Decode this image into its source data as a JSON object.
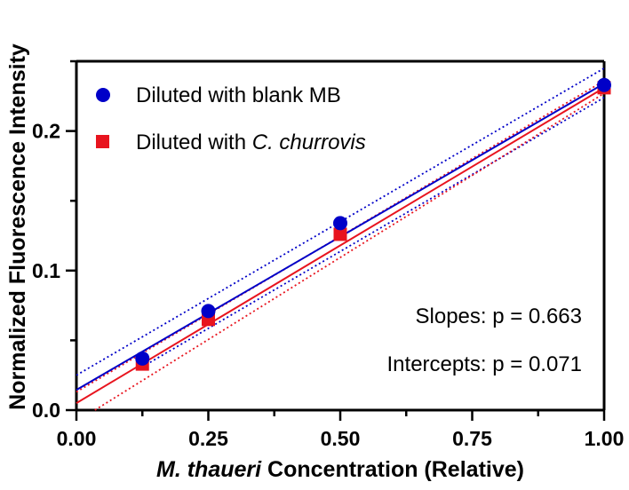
{
  "chart_data": {
    "type": "scatter",
    "xlabel_italic": "M. thaueri",
    "xlabel_rest": " Concentration (Relative)",
    "ylabel": "Normalized Fluorescence Intensity",
    "xlim": [
      0,
      1
    ],
    "ylim": [
      0,
      0.25
    ],
    "xticks": [
      "0.00",
      "0.25",
      "0.50",
      "0.75",
      "1.00"
    ],
    "xtick_values": [
      0,
      0.25,
      0.5,
      0.75,
      1.0
    ],
    "yticks": [
      "0.0",
      "0.1",
      "0.2"
    ],
    "ytick_values": [
      0,
      0.1,
      0.2
    ],
    "grid": false,
    "legend_position": "top-left",
    "series": [
      {
        "name_plain": "Diluted with blank MB",
        "name_prefix": "Diluted with ",
        "name_italic": "",
        "color": "#0000c8",
        "marker": "circle",
        "x": [
          0.125,
          0.25,
          0.5,
          1.0
        ],
        "y": [
          0.037,
          0.071,
          0.134,
          0.233
        ],
        "fit": {
          "intercept": 0.0145,
          "slope": 0.2195
        },
        "ci_upper": [
          [
            0,
            0.025
          ],
          [
            1,
            0.245
          ]
        ],
        "ci_lower": [
          [
            0.125,
            0.031
          ],
          [
            1,
            0.224
          ]
        ]
      },
      {
        "name_plain": "",
        "name_prefix": "Diluted with ",
        "name_italic": "C. churrovis",
        "color": "#e8141e",
        "marker": "square",
        "x": [
          0.125,
          0.25,
          0.5,
          1.0
        ],
        "y": [
          0.033,
          0.065,
          0.126,
          0.231
        ],
        "fit": {
          "intercept": 0.005,
          "slope": 0.226
        },
        "ci_upper": [
          [
            0,
            0.013
          ],
          [
            1,
            0.236
          ]
        ],
        "ci_lower": [
          [
            0.035,
            0.0
          ],
          [
            1,
            0.227
          ]
        ]
      }
    ],
    "annotations": [
      "Slopes: p = 0.663",
      "Intercepts: p = 0.071"
    ]
  }
}
